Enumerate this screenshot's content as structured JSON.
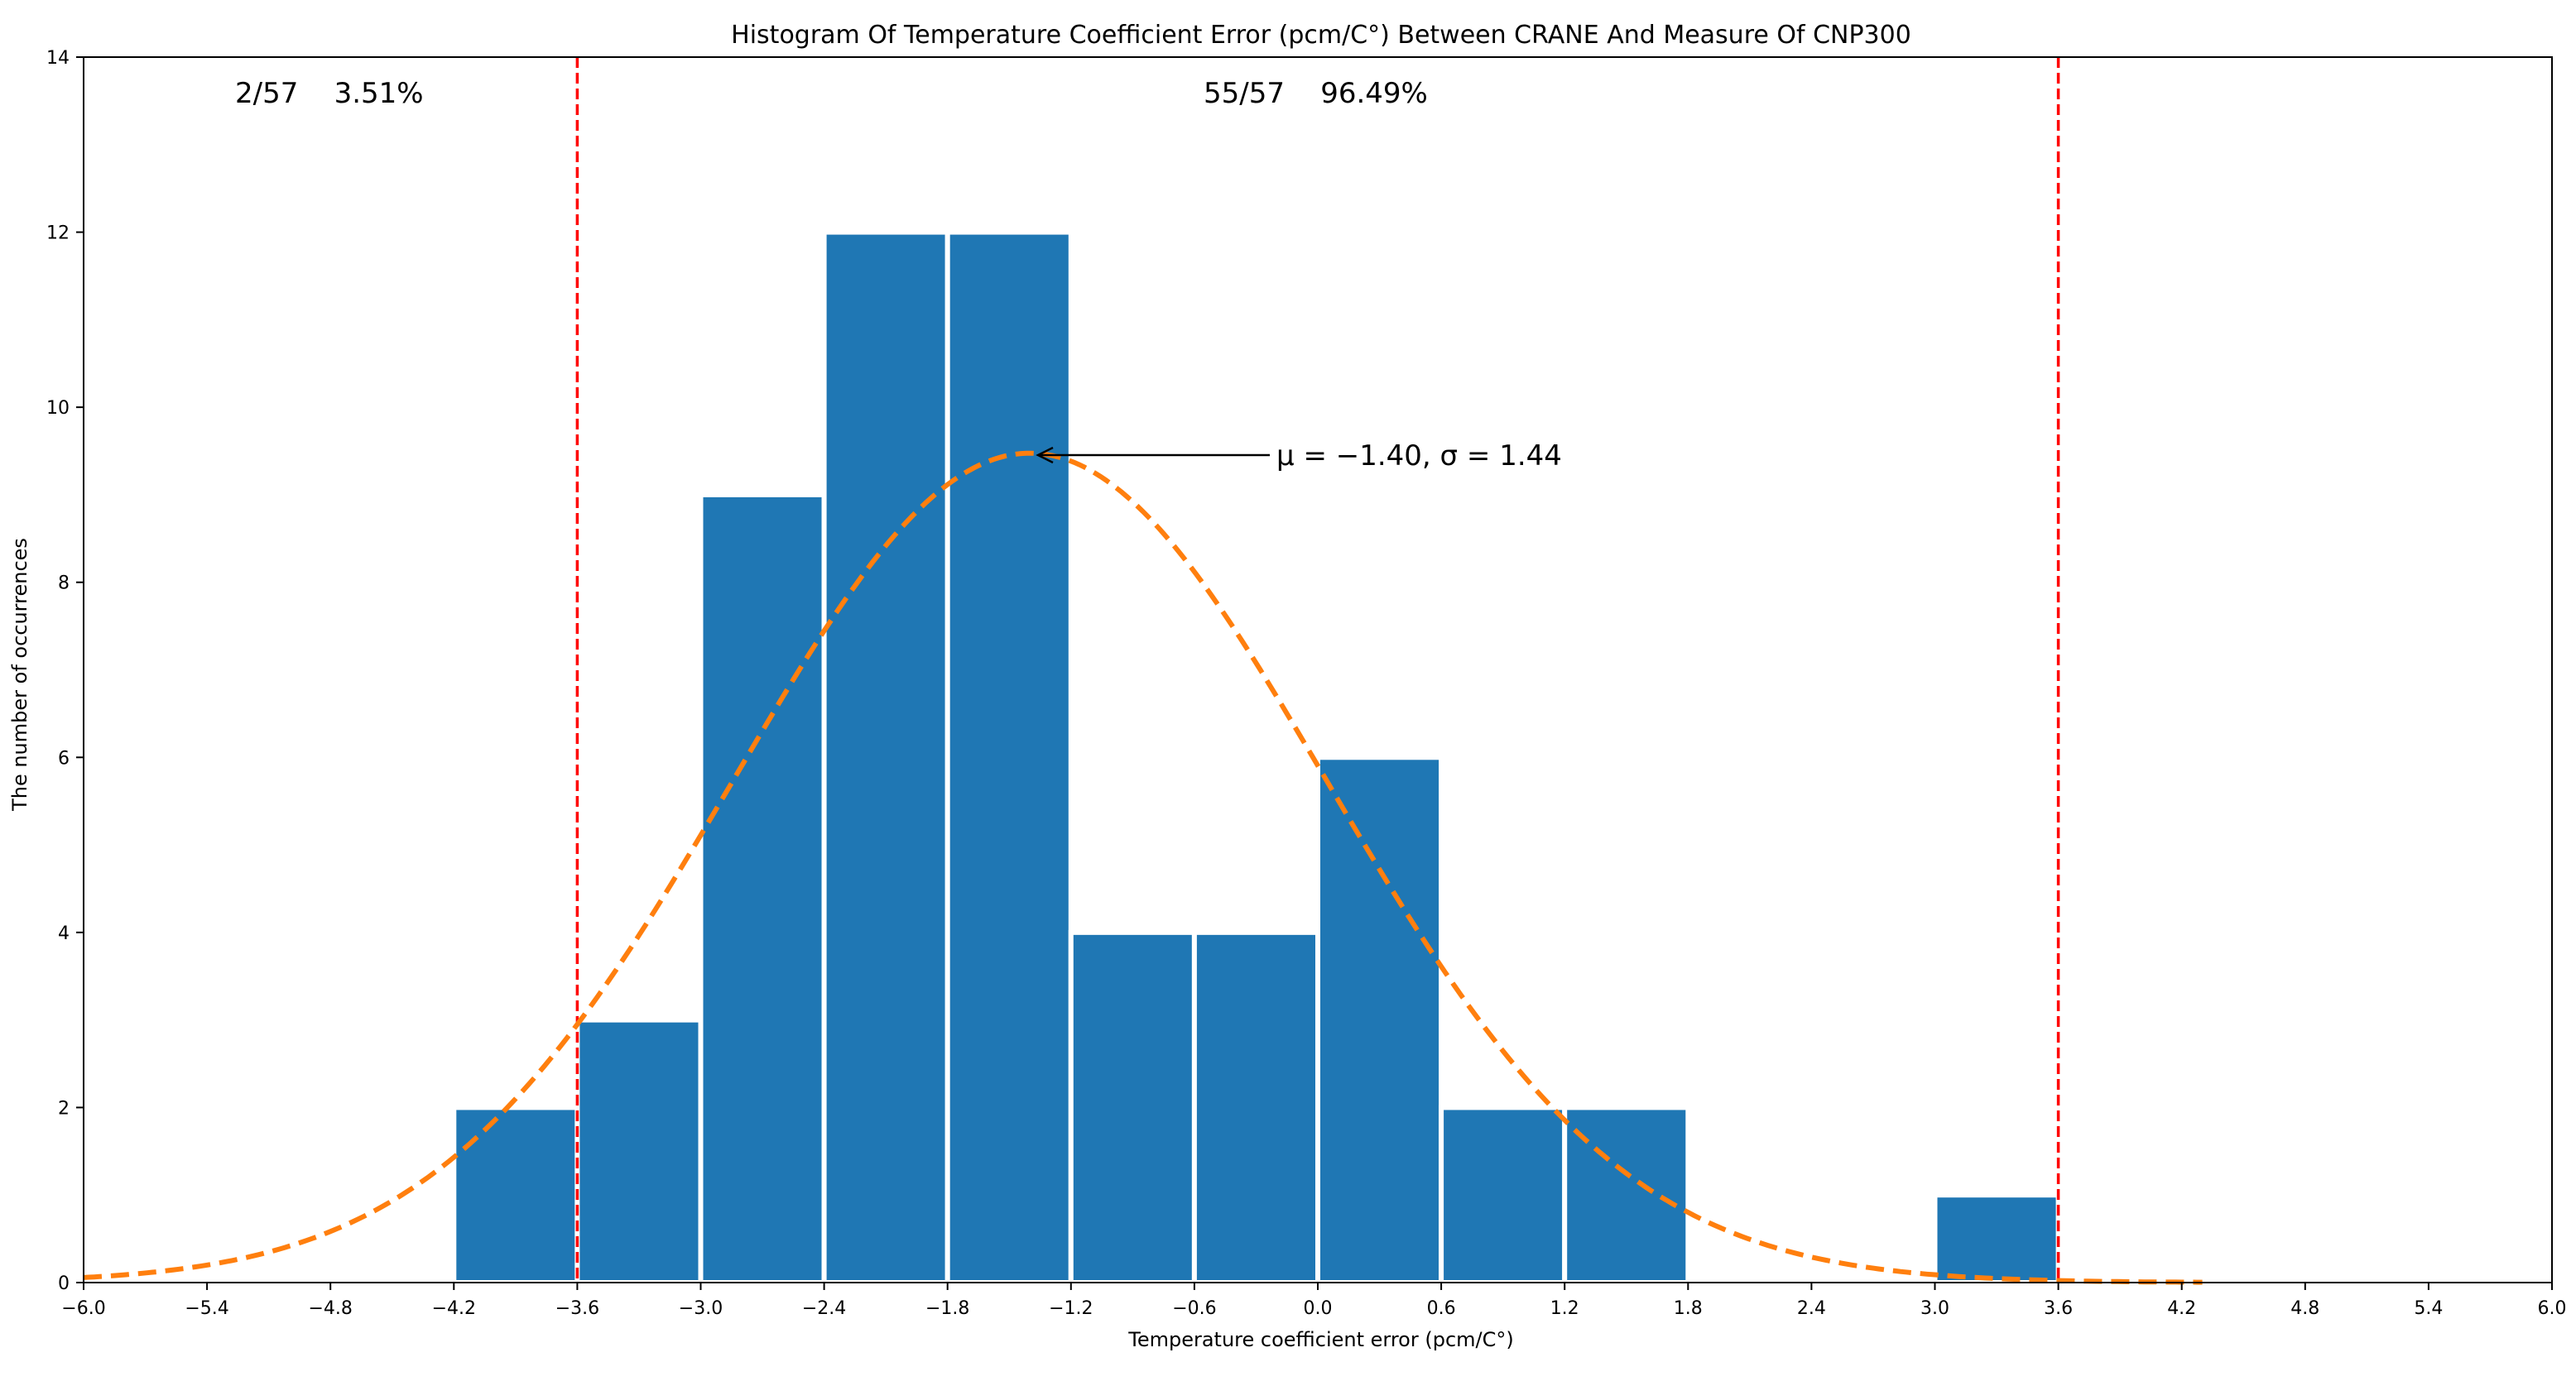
{
  "chart_data": {
    "type": "bar",
    "title": "Histogram Of Temperature Coefficient Error (pcm/C°) Between CRANE And Measure Of CNP300",
    "xlabel": "Temperature coefficient error (pcm/C°)",
    "ylabel": "The number of occurrences",
    "xlim": [
      -6.0,
      6.0
    ],
    "ylim": [
      0,
      14
    ],
    "x_ticks": [
      "−6.0",
      "−5.4",
      "−4.8",
      "−4.2",
      "−3.6",
      "−3.0",
      "−2.4",
      "−1.8",
      "−1.2",
      "−0.6",
      "0.0",
      "0.6",
      "1.2",
      "1.8",
      "2.4",
      "3.0",
      "3.6",
      "4.2",
      "4.8",
      "5.4",
      "6.0"
    ],
    "y_ticks": [
      "0",
      "2",
      "4",
      "6",
      "8",
      "10",
      "12",
      "14"
    ],
    "bin_width": 0.6,
    "bins": [
      {
        "start": -4.2,
        "count": 2
      },
      {
        "start": -3.6,
        "count": 3
      },
      {
        "start": -3.0,
        "count": 9
      },
      {
        "start": -2.4,
        "count": 12
      },
      {
        "start": -1.8,
        "count": 12
      },
      {
        "start": -1.2,
        "count": 4
      },
      {
        "start": -0.6,
        "count": 4
      },
      {
        "start": 0.0,
        "count": 6
      },
      {
        "start": 0.6,
        "count": 2
      },
      {
        "start": 1.2,
        "count": 2
      },
      {
        "start": 3.0,
        "count": 1
      }
    ],
    "fit": {
      "type": "normal",
      "mu": -1.4,
      "sigma": 1.44,
      "total": 57,
      "bin_width": 0.6,
      "x_range": [
        -6.0,
        4.3
      ],
      "color": "#ff7f0e",
      "style": "dashed"
    },
    "bar_color": "#1f77b4",
    "thresholds": [
      {
        "x": -3.6,
        "color": "#ff0000",
        "style": "dashed"
      },
      {
        "x": 3.6,
        "color": "#ff0000",
        "style": "dashed"
      }
    ],
    "annotations": {
      "left_count": "2/57    3.51%",
      "center_count": "55/57    96.49%",
      "fit_label": "μ = −1.40, σ = 1.44"
    },
    "grid": false,
    "legend": "none"
  }
}
